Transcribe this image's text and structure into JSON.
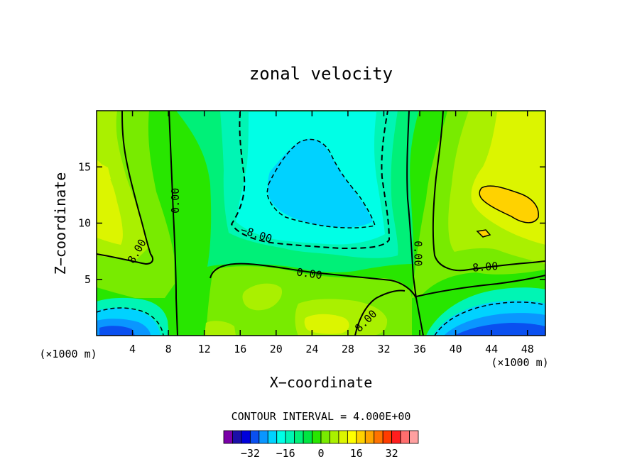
{
  "chart_data": {
    "type": "heatmap",
    "title": "zonal velocity",
    "xlabel": "X−coordinate",
    "ylabel": "Z−coordinate",
    "x_unit": "(×1000 m)",
    "z_unit": "(×1000 m)",
    "xlim": [
      0,
      50
    ],
    "ylim": [
      0,
      20
    ],
    "x_ticks": [
      "4",
      "8",
      "12",
      "16",
      "20",
      "24",
      "28",
      "32",
      "36",
      "40",
      "44",
      "48"
    ],
    "x_tick_values": [
      4,
      8,
      12,
      16,
      20,
      24,
      28,
      32,
      36,
      40,
      44,
      48
    ],
    "y_ticks": [
      "5",
      "10",
      "15"
    ],
    "y_tick_values": [
      5,
      10,
      15
    ],
    "contour_labels": [
      {
        "text": "0.00",
        "x": 8.8,
        "z": 12.0,
        "angle": -90
      },
      {
        "text": "8.00",
        "x": 4.5,
        "z": 7.5,
        "angle": -60
      },
      {
        "text": "−8.00",
        "x": 17.8,
        "z": 9.0,
        "angle": 18
      },
      {
        "text": "0.00",
        "x": 23.7,
        "z": 5.5,
        "angle": 8
      },
      {
        "text": "8.00",
        "x": 30.0,
        "z": 1.3,
        "angle": -45
      },
      {
        "text": "0.00",
        "x": 35.8,
        "z": 7.3,
        "angle": 90
      },
      {
        "text": "8.00",
        "x": 43.3,
        "z": 6.1,
        "angle": -4
      }
    ],
    "contour_interval_text": "CONTOUR INTERVAL = 4.000E+00",
    "contour_interval": 4,
    "colorbar": {
      "colors": [
        "#7a00a8",
        "#1c0fa8",
        "#0000dc",
        "#0a50f0",
        "#0a96ff",
        "#00d2ff",
        "#00ffe6",
        "#00f5b4",
        "#00f078",
        "#00e641",
        "#28e600",
        "#78eb00",
        "#aaf000",
        "#dcf500",
        "#ffff00",
        "#ffd200",
        "#ffa500",
        "#ff7300",
        "#ff3c00",
        "#ff1e1e",
        "#ff6e6e",
        "#ffa0a0"
      ],
      "tick_labels": [
        "−32",
        "−16",
        "0",
        "16",
        "32"
      ],
      "tick_values": [
        -32,
        -16,
        0,
        16,
        32
      ]
    },
    "grid": false
  }
}
